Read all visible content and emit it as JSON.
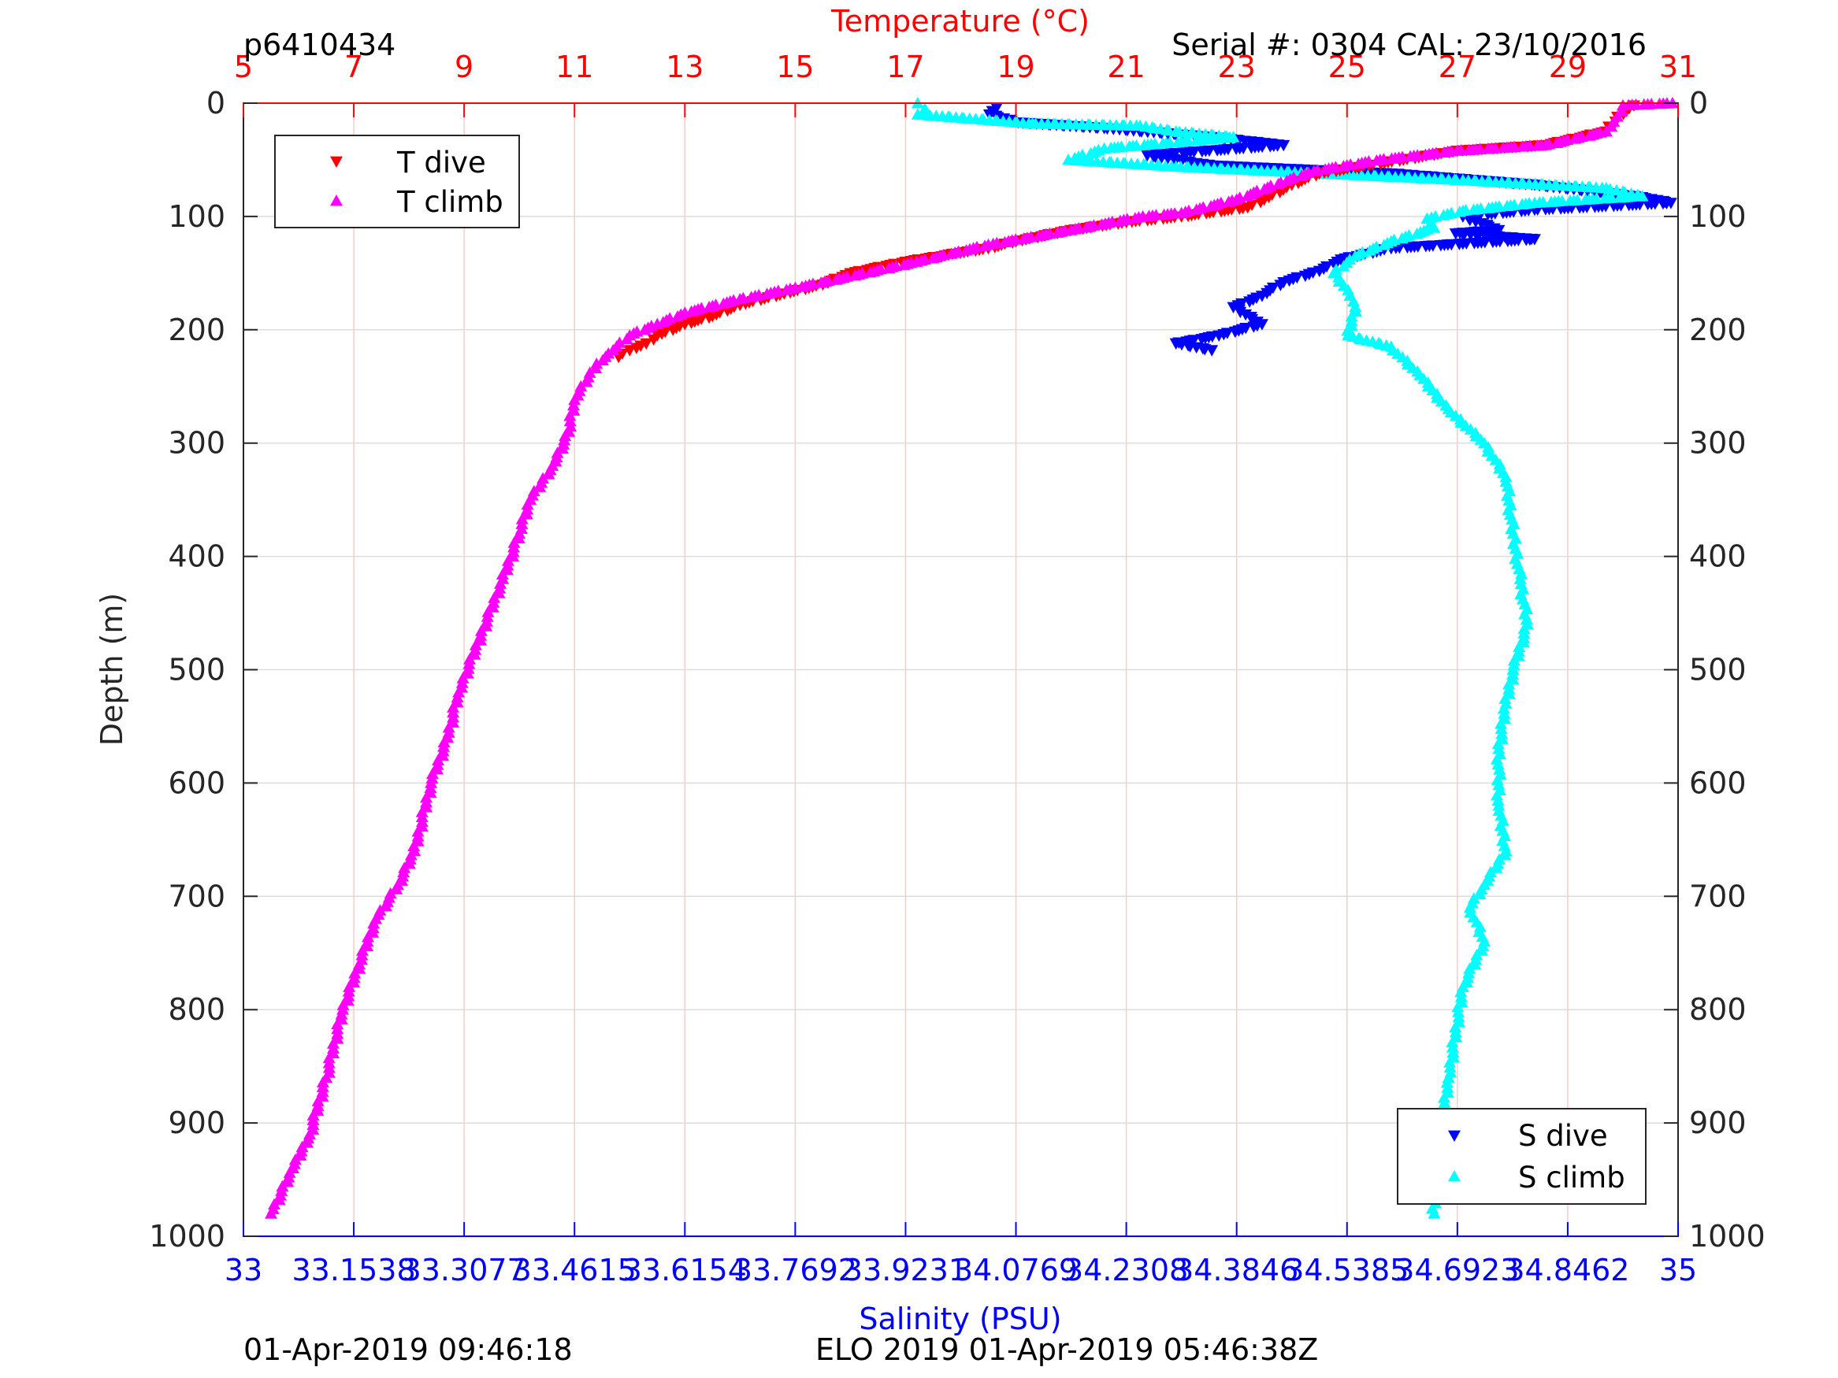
{
  "header": {
    "profile_id": "p6410434",
    "serial_cal": "Serial #: 0304  CAL: 23/10/2016"
  },
  "footer": {
    "local_time": "01-Apr-2019 09:46:18",
    "mission_time": "ELO 2019 01-Apr-2019 05:46:38Z"
  },
  "colors": {
    "temperature_axis": "#ff0000",
    "salinity_axis": "#0000ff",
    "t_dive": "#ff0000",
    "t_climb": "#ff00ff",
    "s_dive": "#0000ff",
    "s_climb": "#00ffff",
    "grid_vertical": "#ffc8c8",
    "grid_horizontal": "#dcdcdc"
  },
  "chart_data": {
    "type": "scatter",
    "title": "",
    "ylabel": "Depth (m)",
    "y_reversed": true,
    "ylim": [
      0,
      1000
    ],
    "y_ticks": [
      "0",
      "100",
      "200",
      "300",
      "400",
      "500",
      "600",
      "700",
      "800",
      "900",
      "1000"
    ],
    "grid": "on",
    "x_top": {
      "label": "Temperature (°C)",
      "lim": [
        5,
        31
      ],
      "ticks": [
        "5",
        "7",
        "9",
        "11",
        "13",
        "15",
        "17",
        "19",
        "21",
        "23",
        "25",
        "27",
        "29",
        "31"
      ]
    },
    "x_bottom": {
      "label": "Salinity (PSU)",
      "lim": [
        33,
        35
      ],
      "ticks": [
        "33",
        "33.1538",
        "33.3077",
        "33.4615",
        "33.6154",
        "33.7692",
        "33.9231",
        "34.0769",
        "34.2308",
        "34.3846",
        "34.5385",
        "34.6923",
        "34.8462",
        "35"
      ]
    },
    "legends": [
      {
        "placement": "top-left",
        "entries": [
          {
            "label": "T dive",
            "marker": "triangle-down",
            "series": "T dive"
          },
          {
            "label": "T climb",
            "marker": "triangle-up",
            "series": "T climb"
          }
        ]
      },
      {
        "placement": "bottom-right",
        "entries": [
          {
            "label": "S dive",
            "marker": "triangle-down",
            "series": "S dive"
          },
          {
            "label": "S climb",
            "marker": "triangle-up",
            "series": "S climb"
          }
        ]
      }
    ],
    "series": [
      {
        "name": "T dive",
        "axis": "temperature",
        "marker": "triangle-down",
        "points": [
          [
            30.2,
            2
          ],
          [
            29.9,
            12
          ],
          [
            29.7,
            25
          ],
          [
            28.6,
            37
          ],
          [
            27.0,
            42
          ],
          [
            25.4,
            55
          ],
          [
            24.5,
            62
          ],
          [
            24.0,
            72
          ],
          [
            23.5,
            85
          ],
          [
            23.2,
            92
          ],
          [
            22.0,
            100
          ],
          [
            21.0,
            105
          ],
          [
            20.0,
            112
          ],
          [
            19.0,
            122
          ],
          [
            18.5,
            128
          ],
          [
            17.0,
            140
          ],
          [
            16.0,
            150
          ],
          [
            15.5,
            160
          ],
          [
            14.8,
            168
          ],
          [
            14.0,
            178
          ],
          [
            13.5,
            188
          ],
          [
            13.0,
            195
          ],
          [
            12.5,
            205
          ],
          [
            12.3,
            212
          ],
          [
            12.0,
            218
          ],
          [
            11.8,
            224
          ]
        ]
      },
      {
        "name": "T climb",
        "axis": "temperature",
        "marker": "triangle-up",
        "points": [
          [
            30.9,
            0
          ],
          [
            30.0,
            2
          ],
          [
            29.9,
            12
          ],
          [
            29.7,
            25
          ],
          [
            28.6,
            37
          ],
          [
            27.0,
            42
          ],
          [
            25.6,
            50
          ],
          [
            24.4,
            60
          ],
          [
            23.8,
            70
          ],
          [
            23.0,
            85
          ],
          [
            22.0,
            97
          ],
          [
            21.3,
            100
          ],
          [
            20.0,
            112
          ],
          [
            18.5,
            125
          ],
          [
            17.2,
            140
          ],
          [
            15.8,
            155
          ],
          [
            15.0,
            163
          ],
          [
            14.0,
            173
          ],
          [
            13.0,
            185
          ],
          [
            12.5,
            195
          ],
          [
            12.0,
            205
          ],
          [
            11.7,
            218
          ],
          [
            11.4,
            230
          ],
          [
            11.0,
            262
          ],
          [
            10.9,
            290
          ],
          [
            10.6,
            320
          ],
          [
            10.2,
            350
          ],
          [
            10.0,
            380
          ],
          [
            9.7,
            420
          ],
          [
            9.3,
            470
          ],
          [
            8.9,
            520
          ],
          [
            8.7,
            560
          ],
          [
            8.4,
            600
          ],
          [
            8.1,
            660
          ],
          [
            7.8,
            690
          ],
          [
            7.4,
            720
          ],
          [
            7.1,
            760
          ],
          [
            6.8,
            800
          ],
          [
            6.5,
            860
          ],
          [
            6.2,
            910
          ],
          [
            5.9,
            940
          ],
          [
            5.5,
            980
          ]
        ]
      },
      {
        "name": "S dive",
        "axis": "salinity",
        "marker": "triangle-down",
        "points": [
          [
            34.05,
            4
          ],
          [
            34.04,
            10
          ],
          [
            34.08,
            17
          ],
          [
            34.2,
            22
          ],
          [
            34.35,
            30
          ],
          [
            34.45,
            37
          ],
          [
            34.26,
            46
          ],
          [
            34.35,
            55
          ],
          [
            34.6,
            62
          ],
          [
            34.8,
            72
          ],
          [
            34.95,
            83
          ],
          [
            34.99,
            88
          ],
          [
            34.8,
            94
          ],
          [
            34.7,
            100
          ],
          [
            34.75,
            112
          ],
          [
            34.69,
            115
          ],
          [
            34.8,
            120
          ],
          [
            34.6,
            128
          ],
          [
            34.53,
            138
          ],
          [
            34.5,
            148
          ],
          [
            34.45,
            158
          ],
          [
            34.42,
            170
          ],
          [
            34.38,
            180
          ],
          [
            34.42,
            195
          ],
          [
            34.36,
            205
          ],
          [
            34.3,
            212
          ],
          [
            34.35,
            218
          ]
        ]
      },
      {
        "name": "S climb",
        "axis": "salinity",
        "marker": "triangle-up",
        "points": [
          [
            33.94,
            0
          ],
          [
            33.95,
            5
          ],
          [
            33.94,
            10
          ],
          [
            34.1,
            18
          ],
          [
            34.25,
            20
          ],
          [
            34.3,
            25
          ],
          [
            34.38,
            30
          ],
          [
            34.2,
            40
          ],
          [
            34.15,
            50
          ],
          [
            34.3,
            56
          ],
          [
            34.5,
            62
          ],
          [
            34.7,
            68
          ],
          [
            34.9,
            75
          ],
          [
            34.95,
            82
          ],
          [
            34.8,
            88
          ],
          [
            34.7,
            95
          ],
          [
            34.65,
            102
          ],
          [
            34.66,
            110
          ],
          [
            34.6,
            122
          ],
          [
            34.55,
            135
          ],
          [
            34.52,
            150
          ],
          [
            34.54,
            165
          ],
          [
            34.55,
            180
          ],
          [
            34.54,
            205
          ],
          [
            34.6,
            215
          ],
          [
            34.64,
            240
          ],
          [
            34.68,
            270
          ],
          [
            34.73,
            300
          ],
          [
            34.76,
            330
          ],
          [
            34.77,
            380
          ],
          [
            34.78,
            420
          ],
          [
            34.79,
            460
          ],
          [
            34.77,
            500
          ],
          [
            34.76,
            530
          ],
          [
            34.75,
            570
          ],
          [
            34.75,
            620
          ],
          [
            34.76,
            660
          ],
          [
            34.73,
            690
          ],
          [
            34.71,
            710
          ],
          [
            34.73,
            740
          ],
          [
            34.7,
            780
          ],
          [
            34.69,
            820
          ],
          [
            34.68,
            860
          ],
          [
            34.67,
            900
          ],
          [
            34.66,
            930
          ],
          [
            34.66,
            980
          ]
        ]
      }
    ]
  }
}
